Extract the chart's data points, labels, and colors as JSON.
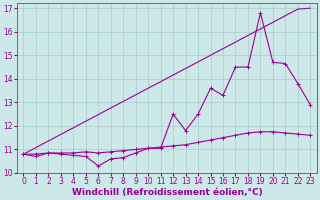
{
  "xlabel": "Windchill (Refroidissement éolien,°C)",
  "ylabel": "",
  "background_color": "#cde8e8",
  "grid_color": "#aacccc",
  "line_color": "#990099",
  "x": [
    0,
    1,
    2,
    3,
    4,
    5,
    6,
    7,
    8,
    9,
    10,
    11,
    12,
    13,
    14,
    15,
    16,
    17,
    18,
    19,
    20,
    21,
    22,
    23
  ],
  "line1_zigzag": [
    10.8,
    10.7,
    10.85,
    10.8,
    10.75,
    10.7,
    10.3,
    10.6,
    10.65,
    10.85,
    11.05,
    11.05,
    12.5,
    11.8,
    12.5,
    13.6,
    13.3,
    14.5,
    14.5,
    16.8,
    14.7,
    14.65,
    13.8,
    12.9
  ],
  "line2_flat": [
    10.8,
    10.8,
    10.85,
    10.85,
    10.85,
    10.9,
    10.85,
    10.9,
    10.95,
    11.0,
    11.05,
    11.1,
    11.15,
    11.2,
    11.3,
    11.4,
    11.5,
    11.6,
    11.7,
    11.75,
    11.75,
    11.7,
    11.65,
    11.6
  ],
  "line3_diag": [
    10.8,
    11.08,
    11.36,
    11.64,
    11.92,
    12.2,
    12.48,
    12.76,
    13.04,
    13.32,
    13.6,
    13.88,
    14.16,
    14.44,
    14.72,
    15.0,
    15.28,
    15.56,
    15.84,
    16.12,
    16.4,
    16.68,
    16.96,
    17.0
  ],
  "ylim": [
    10.0,
    17.2
  ],
  "xlim": [
    -0.5,
    23.5
  ],
  "yticks": [
    10,
    11,
    12,
    13,
    14,
    15,
    16,
    17
  ],
  "xticks": [
    0,
    1,
    2,
    3,
    4,
    5,
    6,
    7,
    8,
    9,
    10,
    11,
    12,
    13,
    14,
    15,
    16,
    17,
    18,
    19,
    20,
    21,
    22,
    23
  ],
  "tick_fontsize": 5.5,
  "xlabel_fontsize": 6.5
}
